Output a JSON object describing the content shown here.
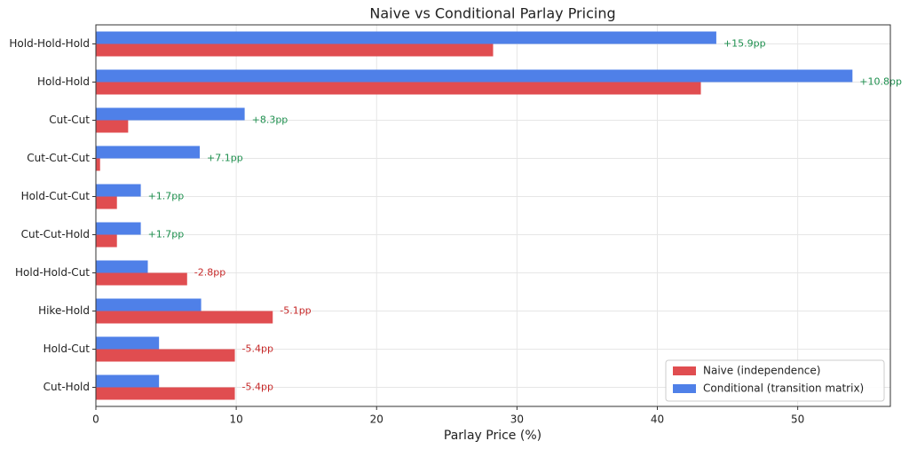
{
  "chart_data": {
    "type": "hbar",
    "title": "Naive vs Conditional Parlay Pricing",
    "x_label": "Parlay Price (%)",
    "categories": [
      "Hold-Hold-Hold",
      "Hold-Hold",
      "Cut-Cut",
      "Cut-Cut-Cut",
      "Hold-Cut-Cut",
      "Cut-Cut-Hold",
      "Hold-Hold-Cut",
      "Hike-Hold",
      "Hold-Cut",
      "Cut-Hold"
    ],
    "series": [
      {
        "name": "Naive (independence)",
        "color": "#e04d50",
        "values": [
          28.3,
          43.1,
          2.3,
          0.3,
          1.5,
          1.5,
          6.5,
          12.6,
          9.9,
          9.9
        ]
      },
      {
        "name": "Conditional (transition matrix)",
        "color": "#4f80e8",
        "values": [
          44.2,
          53.9,
          10.6,
          7.4,
          3.2,
          3.2,
          3.7,
          7.5,
          4.5,
          4.5
        ]
      }
    ],
    "annotations": [
      {
        "text": "+15.9pp",
        "color": "#1e8f4e"
      },
      {
        "text": "+10.8pp",
        "color": "#1e8f4e"
      },
      {
        "text": "+8.3pp",
        "color": "#1e8f4e"
      },
      {
        "text": "+7.1pp",
        "color": "#1e8f4e"
      },
      {
        "text": "+1.7pp",
        "color": "#1e8f4e"
      },
      {
        "text": "+1.7pp",
        "color": "#1e8f4e"
      },
      {
        "text": "-2.8pp",
        "color": "#c62828"
      },
      {
        "text": "-5.1pp",
        "color": "#c62828"
      },
      {
        "text": "-5.4pp",
        "color": "#c62828"
      },
      {
        "text": "-5.4pp",
        "color": "#c62828"
      }
    ],
    "xlim": [
      0,
      56.6
    ],
    "xticks": [
      0,
      10,
      20,
      30,
      40,
      50
    ],
    "grid": true,
    "legend": "lower right"
  }
}
